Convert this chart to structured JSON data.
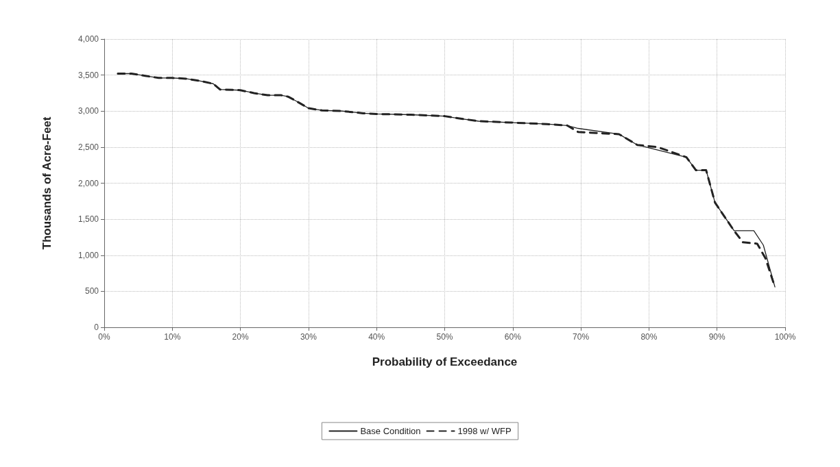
{
  "chart_data": {
    "type": "line",
    "xlabel": "Probability of Exceedance",
    "ylabel": "Thousands of Acre-Feet",
    "xlim": [
      0,
      100
    ],
    "xticks": [
      {
        "value": 0,
        "label": "0%"
      },
      {
        "value": 10,
        "label": "10%"
      },
      {
        "value": 20,
        "label": "20%"
      },
      {
        "value": 30,
        "label": "30%"
      },
      {
        "value": 40,
        "label": "40%"
      },
      {
        "value": 50,
        "label": "50%"
      },
      {
        "value": 60,
        "label": "60%"
      },
      {
        "value": 70,
        "label": "70%"
      },
      {
        "value": 80,
        "label": "80%"
      },
      {
        "value": 90,
        "label": "90%"
      },
      {
        "value": 100,
        "label": "100%"
      }
    ],
    "ylim": [
      0,
      4000
    ],
    "yticks": [
      0,
      {
        "value": 500,
        "label": "500"
      },
      {
        "value": 1000,
        "label": "1,000"
      },
      {
        "value": 1500,
        "label": "1,500"
      },
      {
        "value": 2000,
        "label": "2,000"
      },
      {
        "value": 2500,
        "label": "2,500"
      },
      {
        "value": 3000,
        "label": "3,000"
      },
      {
        "value": 3500,
        "label": "3,500"
      },
      {
        "value": 4000,
        "label": "4,000"
      }
    ],
    "grid": true,
    "legend": "bottom",
    "marker": "none",
    "series": [
      {
        "name": "Base Condition",
        "color": "#222222",
        "line_style": "solid",
        "x": [
          2,
          4,
          6,
          8,
          10,
          12,
          14,
          16,
          17,
          20,
          22,
          24,
          26,
          27,
          28,
          30,
          32,
          35,
          38,
          40,
          45,
          50,
          52,
          55,
          60,
          65,
          68,
          69.6,
          75.6,
          78.3,
          81.3,
          85.5,
          86.9,
          88.4,
          89.7,
          92.5,
          95.4,
          96.8,
          98.5
        ],
        "values": [
          3520,
          3520,
          3490,
          3460,
          3460,
          3450,
          3420,
          3380,
          3300,
          3290,
          3250,
          3220,
          3220,
          3200,
          3150,
          3040,
          3010,
          3000,
          2970,
          2960,
          2950,
          2930,
          2900,
          2860,
          2840,
          2820,
          2800,
          2760,
          2680,
          2530,
          2460,
          2360,
          2180,
          2180,
          1730,
          1340,
          1340,
          1140,
          560
        ]
      },
      {
        "name": "1998 w/ WFP",
        "color": "#222222",
        "line_style": "dashed",
        "x": [
          2,
          4,
          6,
          8,
          10,
          12,
          14,
          16,
          17,
          20,
          22,
          24,
          26,
          27,
          28,
          30,
          32,
          35,
          38,
          40,
          45,
          50,
          52,
          55,
          60,
          65,
          68,
          69.6,
          75.6,
          78.3,
          81.3,
          85.5,
          86.9,
          88.4,
          89.7,
          92.5,
          93.8,
          95.9,
          97.1,
          98.5
        ],
        "values": [
          3520,
          3520,
          3490,
          3460,
          3460,
          3450,
          3420,
          3380,
          3300,
          3290,
          3250,
          3220,
          3220,
          3200,
          3150,
          3040,
          3010,
          3000,
          2970,
          2960,
          2950,
          2930,
          2900,
          2860,
          2840,
          2820,
          2800,
          2710,
          2680,
          2530,
          2500,
          2360,
          2180,
          2180,
          1730,
          1340,
          1180,
          1160,
          960,
          560
        ]
      }
    ]
  }
}
